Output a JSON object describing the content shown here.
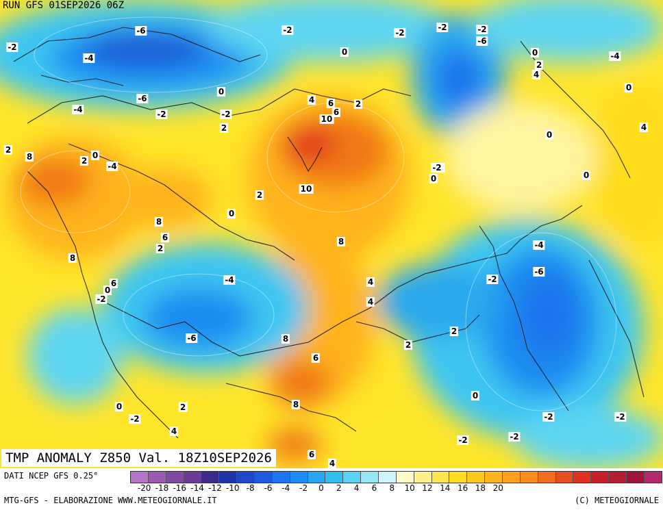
{
  "header": {
    "run_label": "RUN GFS 01SEP2026 06Z"
  },
  "map": {
    "title": "TMP ANOMALY Z850 Val. 18Z10SEP2026",
    "labels": [
      "-2",
      "-6",
      "-2",
      "-2",
      "-2",
      "-4",
      "-4",
      "-6",
      "-2",
      "0",
      "-4",
      "0",
      "2",
      "-2",
      "-6",
      "-2",
      "0",
      "0",
      "2",
      "4",
      "4",
      "6",
      "8",
      "2",
      "-4",
      "10",
      "6",
      "2",
      "2",
      "-2",
      "0",
      "8",
      "0",
      "0",
      "2",
      "4",
      "10",
      "-2",
      "0",
      "2",
      "8",
      "0",
      "8",
      "-4",
      "6",
      "4",
      "-6",
      "4",
      "6",
      "-2",
      "-2",
      "0",
      "2",
      "2",
      "-6",
      "8",
      "2",
      "-2",
      "6",
      "8",
      "0",
      "-2",
      "0",
      "2",
      "-4",
      "-2",
      "4",
      "-2",
      "-2",
      "6",
      "4"
    ],
    "colors": {
      "strong_cold": "#1e5ad8",
      "cold": "#2aa8ee",
      "cool": "#5fd6f2",
      "neutral": "#fff7a0",
      "mild": "#ffe026",
      "warm": "#ffb41e",
      "hot": "#f07814",
      "very_hot": "#e0321e",
      "borders": "#111111"
    }
  },
  "colorbar": {
    "colors": [
      "#b473c8",
      "#9b5ab4",
      "#824aa5",
      "#6a3a96",
      "#3c2a8c",
      "#1c34a8",
      "#1e48c8",
      "#1e5ae0",
      "#1e73ee",
      "#1e8cf5",
      "#28a5f0",
      "#32bef0",
      "#5ad2f5",
      "#96e6f5",
      "#cdf5fa",
      "#fffac8",
      "#fff08c",
      "#ffe650",
      "#ffdc1e",
      "#ffc81e",
      "#ffb41e",
      "#ffa01e",
      "#fa8c1e",
      "#f06e1e",
      "#e6501e",
      "#dc321e",
      "#c81e28",
      "#b41e32",
      "#a0143c",
      "#b4286e"
    ],
    "ticks": [
      "-20",
      "-18",
      "-16",
      "-14",
      "-12",
      "-10",
      "-8",
      "-6",
      "-4",
      "-2",
      "0",
      "2",
      "4",
      "6",
      "8",
      "10",
      "12",
      "14",
      "16",
      "18",
      "20"
    ]
  },
  "footer": {
    "data_source": "DATI NCEP GFS 0.25°",
    "site_credit": "MTG-GFS - ELABORAZIONE WWW.METEOGIORNALE.IT",
    "copyright": "(C) METEOGIORNALE"
  }
}
